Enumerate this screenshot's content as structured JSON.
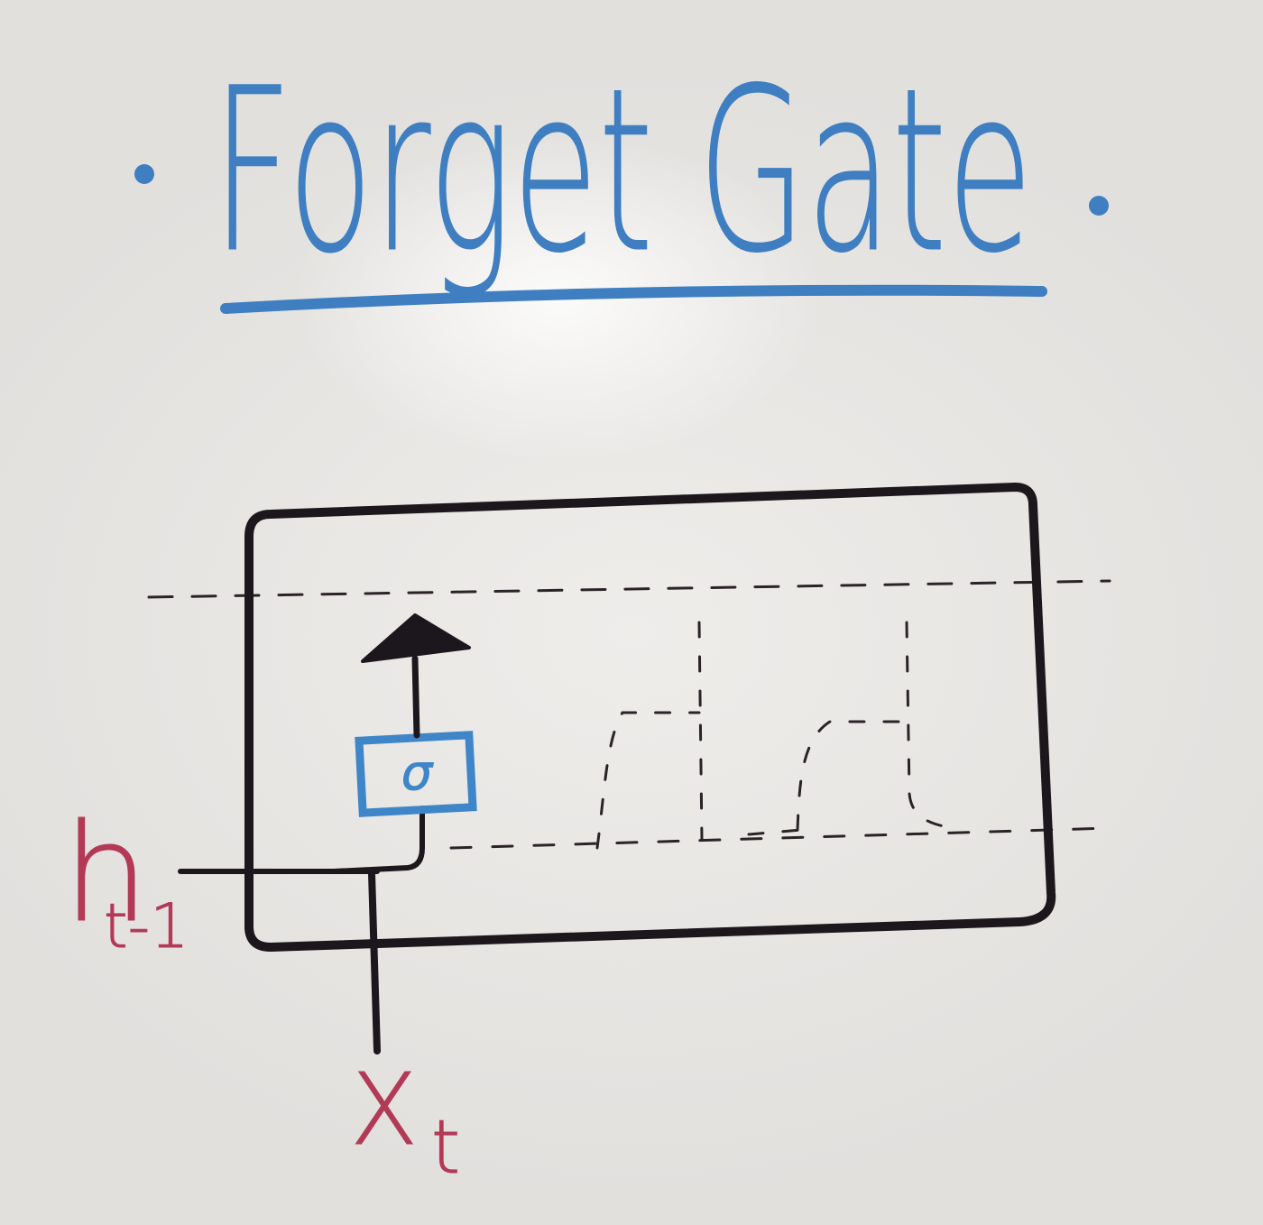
{
  "title": {
    "text": "Forget Gate",
    "color": "#3f7fc1"
  },
  "gate": {
    "symbol": "σ",
    "color": "#3f86c8"
  },
  "inputs": {
    "hidden_prev": {
      "base": "h",
      "subscript": "t-1",
      "color": "#b23a57"
    },
    "current_input": {
      "base": "X",
      "subscript": "t",
      "color": "#b23a57"
    }
  },
  "colors": {
    "ink": "#1c171c",
    "marker_blue": "#3f7fc1",
    "marker_red": "#b23a57",
    "board": "#e9e7e4"
  }
}
